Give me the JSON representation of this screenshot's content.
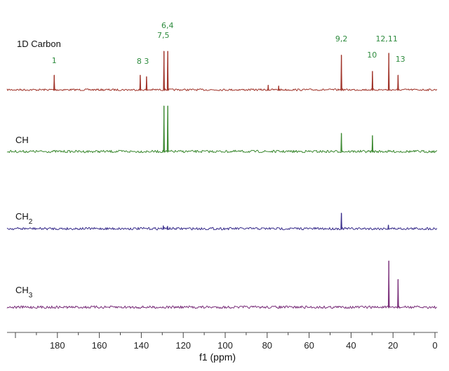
{
  "chart_data": {
    "type": "line",
    "xlabel": "f1 (ppm)",
    "xlim": [
      200,
      0
    ],
    "xticks": [
      180,
      160,
      140,
      120,
      100,
      80,
      60,
      40,
      20,
      0
    ],
    "grid": false,
    "series": [
      {
        "name": "1D Carbon",
        "color": "#a0342a",
        "peaks": [
          {
            "ppm": 181.5,
            "height": 0.38
          },
          {
            "ppm": 140.5,
            "height": 0.38
          },
          {
            "ppm": 137.5,
            "height": 0.34
          },
          {
            "ppm": 129.2,
            "height": 1.0
          },
          {
            "ppm": 127.4,
            "height": 1.0
          },
          {
            "ppm": 79.5,
            "height": 0.12
          },
          {
            "ppm": 74.5,
            "height": 0.1
          },
          {
            "ppm": 44.6,
            "height": 0.9
          },
          {
            "ppm": 29.8,
            "height": 0.48
          },
          {
            "ppm": 22.0,
            "height": 0.95
          },
          {
            "ppm": 17.6,
            "height": 0.38
          }
        ],
        "peak_labels": [
          {
            "text": "1",
            "ppm": 181.5
          },
          {
            "text": "8",
            "ppm": 141.0
          },
          {
            "text": "3",
            "ppm": 137.5
          },
          {
            "text": "6,4",
            "ppm": 127.5
          },
          {
            "text": "7,5",
            "ppm": 129.5
          },
          {
            "text": "9,2",
            "ppm": 44.6
          },
          {
            "text": "10",
            "ppm": 30.0
          },
          {
            "text": "12,11",
            "ppm": 23.0
          },
          {
            "text": "13",
            "ppm": 16.5
          }
        ]
      },
      {
        "name": "CH",
        "color": "#3e8a33",
        "peaks": [
          {
            "ppm": 129.2,
            "height": 1.0
          },
          {
            "ppm": 127.4,
            "height": 1.0
          },
          {
            "ppm": 44.6,
            "height": 0.4
          },
          {
            "ppm": 29.8,
            "height": 0.35
          }
        ]
      },
      {
        "name": "CH",
        "name_subscript": "2",
        "color": "#3a2f8c",
        "peaks": [
          {
            "ppm": 129.5,
            "height": 0.12
          },
          {
            "ppm": 127.5,
            "height": 0.1
          },
          {
            "ppm": 44.6,
            "height": 0.65
          },
          {
            "ppm": 22.2,
            "height": 0.15
          }
        ]
      },
      {
        "name": "CH",
        "name_subscript": "3",
        "color": "#7a2f7a",
        "peaks": [
          {
            "ppm": 22.0,
            "height": 1.0
          },
          {
            "ppm": 17.6,
            "height": 0.6
          }
        ]
      }
    ]
  }
}
